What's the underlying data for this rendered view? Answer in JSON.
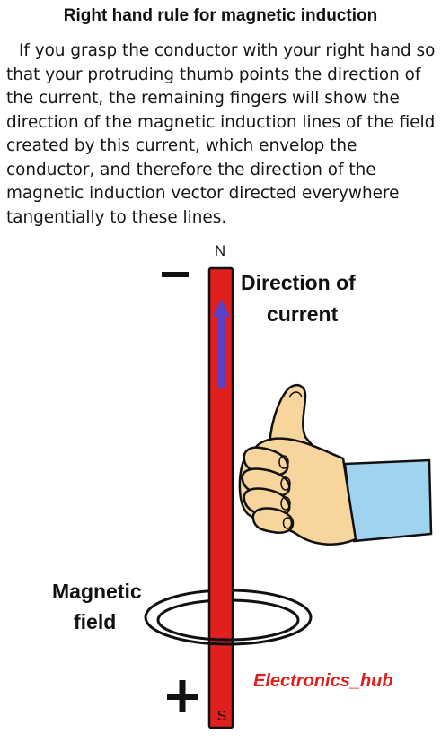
{
  "title": "Right hand rule for magnetic induction",
  "paragraph": "If you grasp the conductor with your right hand so that your protruding thumb points the direction of the current, the remaining fingers will show the direction of the magnetic induction lines of the field created by this current, which envelop the conductor, and therefore the direction of the magnetic induction vector directed everywhere tangentially to these lines.",
  "diagram": {
    "pole_top": "N",
    "pole_bottom": "S",
    "sign_top": "−",
    "sign_bottom": "+",
    "current_label_line1": "Direction of",
    "current_label_line2": "current",
    "field_label_line1": "Magnetic",
    "field_label_line2": "field",
    "watermark": "Electronics_hub",
    "colors": {
      "conductor": "#e0201e",
      "current_arrow": "#5b3fc4",
      "skin": "#f8d59c",
      "sleeve": "#9fd3f0",
      "watermark": "#e0201e"
    }
  }
}
